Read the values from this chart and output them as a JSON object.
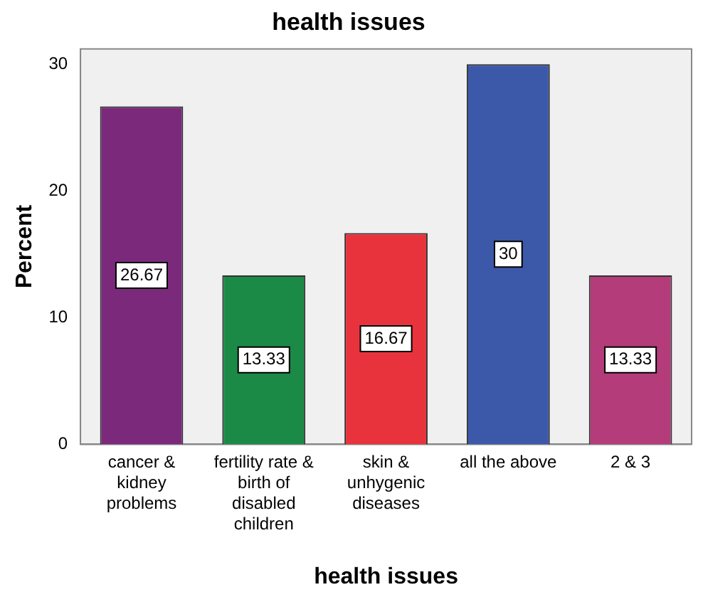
{
  "chart_data": {
    "type": "bar",
    "title": "health issues",
    "xlabel": "health issues",
    "ylabel": "Percent",
    "categories": [
      "cancer & kidney problems",
      "fertility rate & birth of disabled children",
      "skin & unhygenic diseases",
      "all the above",
      "2 & 3"
    ],
    "values": [
      26.67,
      13.33,
      16.67,
      30,
      13.33
    ],
    "colors": [
      "#7b2a7b",
      "#1b8a47",
      "#e8333c",
      "#3c58a9",
      "#b43c7a"
    ],
    "ylim": [
      0,
      31.2
    ],
    "yticks": [
      0,
      10,
      20,
      30
    ],
    "grid": false,
    "legend": false,
    "data_labels": true
  }
}
